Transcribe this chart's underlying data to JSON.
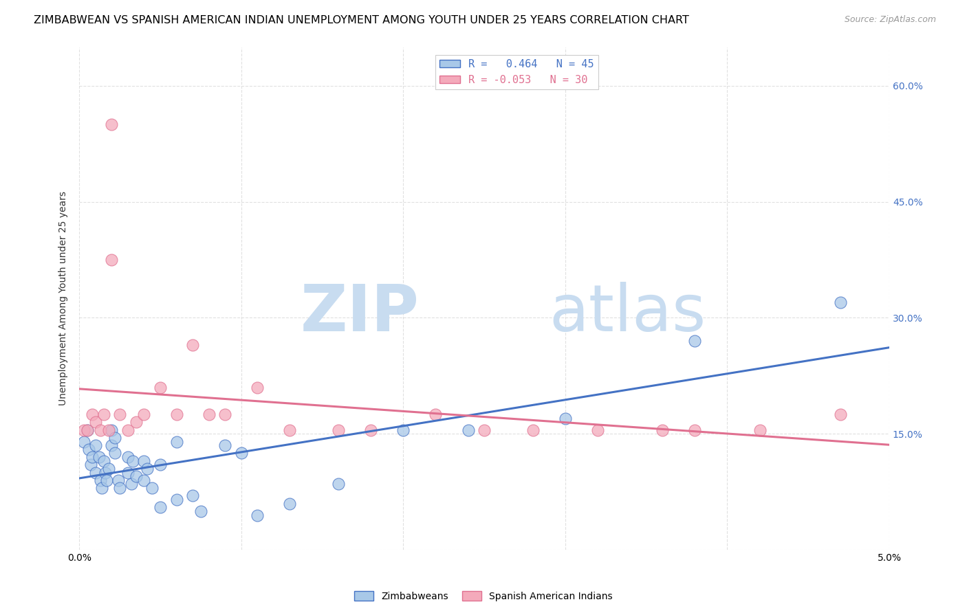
{
  "title": "ZIMBABWEAN VS SPANISH AMERICAN INDIAN UNEMPLOYMENT AMONG YOUTH UNDER 25 YEARS CORRELATION CHART",
  "source": "Source: ZipAtlas.com",
  "ylabel": "Unemployment Among Youth under 25 years",
  "r_zimbabwean": 0.464,
  "n_zimbabwean": 45,
  "r_spanish": -0.053,
  "n_spanish": 30,
  "color_zimbabwean": "#A8C8E8",
  "color_spanish": "#F4AABB",
  "line_color_zimbabwean": "#4472C4",
  "line_color_spanish": "#E07090",
  "xlim": [
    0.0,
    0.05
  ],
  "ylim": [
    0.0,
    0.65
  ],
  "yticks": [
    0.0,
    0.15,
    0.3,
    0.45,
    0.6
  ],
  "ytick_labels_right": [
    "",
    "15.0%",
    "30.0%",
    "45.0%",
    "60.0%"
  ],
  "xticks": [
    0.0,
    0.01,
    0.02,
    0.03,
    0.04,
    0.05
  ],
  "xtick_labels": [
    "0.0%",
    "",
    "",
    "",
    "",
    "5.0%"
  ],
  "zimbabwean_x": [
    0.0003,
    0.0005,
    0.0006,
    0.0007,
    0.0008,
    0.001,
    0.001,
    0.0012,
    0.0013,
    0.0014,
    0.0015,
    0.0016,
    0.0017,
    0.0018,
    0.002,
    0.002,
    0.0022,
    0.0022,
    0.0024,
    0.0025,
    0.003,
    0.003,
    0.0032,
    0.0033,
    0.0035,
    0.004,
    0.004,
    0.0042,
    0.0045,
    0.005,
    0.005,
    0.006,
    0.006,
    0.007,
    0.0075,
    0.009,
    0.01,
    0.011,
    0.013,
    0.016,
    0.02,
    0.024,
    0.03,
    0.038,
    0.047
  ],
  "zimbabwean_y": [
    0.14,
    0.155,
    0.13,
    0.11,
    0.12,
    0.135,
    0.1,
    0.12,
    0.09,
    0.08,
    0.115,
    0.1,
    0.09,
    0.105,
    0.135,
    0.155,
    0.125,
    0.145,
    0.09,
    0.08,
    0.12,
    0.1,
    0.085,
    0.115,
    0.095,
    0.115,
    0.09,
    0.105,
    0.08,
    0.11,
    0.055,
    0.065,
    0.14,
    0.07,
    0.05,
    0.135,
    0.125,
    0.045,
    0.06,
    0.085,
    0.155,
    0.155,
    0.17,
    0.27,
    0.32
  ],
  "spanish_x": [
    0.0003,
    0.0005,
    0.0008,
    0.001,
    0.0013,
    0.0015,
    0.0018,
    0.002,
    0.002,
    0.0025,
    0.003,
    0.0035,
    0.004,
    0.005,
    0.006,
    0.007,
    0.008,
    0.009,
    0.011,
    0.013,
    0.016,
    0.018,
    0.022,
    0.025,
    0.028,
    0.032,
    0.036,
    0.038,
    0.042,
    0.047
  ],
  "spanish_y": [
    0.155,
    0.155,
    0.175,
    0.165,
    0.155,
    0.175,
    0.155,
    0.375,
    0.55,
    0.175,
    0.155,
    0.165,
    0.175,
    0.21,
    0.175,
    0.265,
    0.175,
    0.175,
    0.21,
    0.155,
    0.155,
    0.155,
    0.175,
    0.155,
    0.155,
    0.155,
    0.155,
    0.155,
    0.155,
    0.175
  ],
  "background_color": "#FFFFFF",
  "grid_color": "#DDDDDD",
  "title_fontsize": 11.5,
  "label_fontsize": 10,
  "tick_fontsize": 10,
  "legend_fontsize": 11
}
